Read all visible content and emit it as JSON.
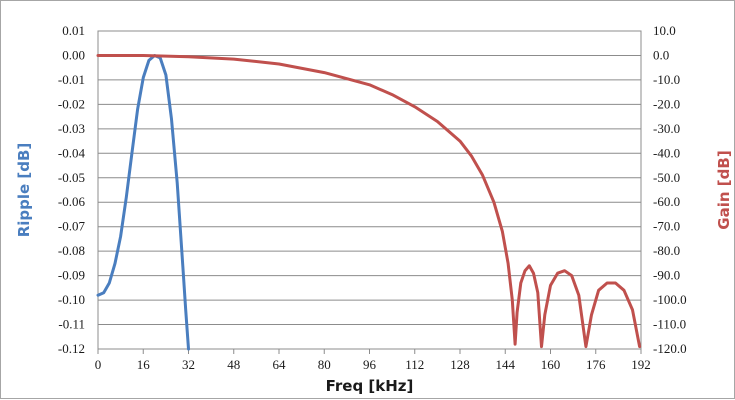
{
  "chart_data": {
    "type": "line",
    "title": "",
    "xlabel": "Freq [kHz]",
    "ylabel_left": "Ripple [dB]",
    "ylabel_right": "Gain [dB]",
    "x_ticks": [
      "0",
      "16",
      "32",
      "48",
      "64",
      "80",
      "96",
      "112",
      "128",
      "144",
      "160",
      "176",
      "192"
    ],
    "x_range": [
      0,
      192
    ],
    "y_left_ticks": [
      "0.01",
      "0.00",
      "-0.01",
      "-0.02",
      "-0.03",
      "-0.04",
      "-0.05",
      "-0.06",
      "-0.07",
      "-0.08",
      "-0.09",
      "-0.10",
      "-0.11",
      "-0.12"
    ],
    "y_left_range": [
      -0.12,
      0.01
    ],
    "y_right_ticks": [
      "10.0",
      "0.0",
      "-10.0",
      "-20.0",
      "-30.0",
      "-40.0",
      "-50.0",
      "-60.0",
      "-70.0",
      "-80.0",
      "-90.0",
      "-100.0",
      "-110.0",
      "-120.0"
    ],
    "y_right_range": [
      -120,
      10
    ],
    "grid": true,
    "colors": {
      "ripple": "#4a7ebf",
      "gain": "#c0504d",
      "grid": "#8c8c8c"
    },
    "series": [
      {
        "axis": "left",
        "points": [
          [
            0,
            -0.098
          ],
          [
            2,
            -0.097
          ],
          [
            4,
            -0.093
          ],
          [
            6,
            -0.085
          ],
          [
            8,
            -0.074
          ],
          [
            10,
            -0.058
          ],
          [
            12,
            -0.04
          ],
          [
            14,
            -0.022
          ],
          [
            16,
            -0.009
          ],
          [
            18,
            -0.002
          ],
          [
            20,
            0.0
          ],
          [
            22,
            -0.001
          ],
          [
            24,
            -0.008
          ],
          [
            26,
            -0.026
          ],
          [
            28,
            -0.052
          ],
          [
            30,
            -0.086
          ],
          [
            31,
            -0.104
          ],
          [
            32,
            -0.12
          ]
        ]
      },
      {
        "axis": "right",
        "points": [
          [
            0,
            0
          ],
          [
            16,
            0
          ],
          [
            32,
            -0.5
          ],
          [
            48,
            -1.5
          ],
          [
            64,
            -3.5
          ],
          [
            80,
            -7
          ],
          [
            96,
            -12
          ],
          [
            104,
            -16
          ],
          [
            112,
            -21
          ],
          [
            120,
            -27
          ],
          [
            128,
            -35
          ],
          [
            132,
            -41
          ],
          [
            136,
            -49
          ],
          [
            140,
            -60
          ],
          [
            143,
            -72
          ],
          [
            145,
            -85
          ],
          [
            146.5,
            -100
          ],
          [
            147.5,
            -118
          ],
          [
            148.2,
            -105
          ],
          [
            149.5,
            -93
          ],
          [
            151,
            -88
          ],
          [
            152.5,
            -86
          ],
          [
            154,
            -89
          ],
          [
            155.5,
            -97
          ],
          [
            156.8,
            -119
          ],
          [
            158,
            -106
          ],
          [
            160,
            -94
          ],
          [
            162.5,
            -89
          ],
          [
            165,
            -88
          ],
          [
            167.5,
            -90
          ],
          [
            170,
            -98
          ],
          [
            172.5,
            -119
          ],
          [
            174.5,
            -106
          ],
          [
            177,
            -96
          ],
          [
            180,
            -93
          ],
          [
            183,
            -93
          ],
          [
            186,
            -96
          ],
          [
            189,
            -104
          ],
          [
            191.5,
            -119
          ]
        ]
      }
    ]
  }
}
